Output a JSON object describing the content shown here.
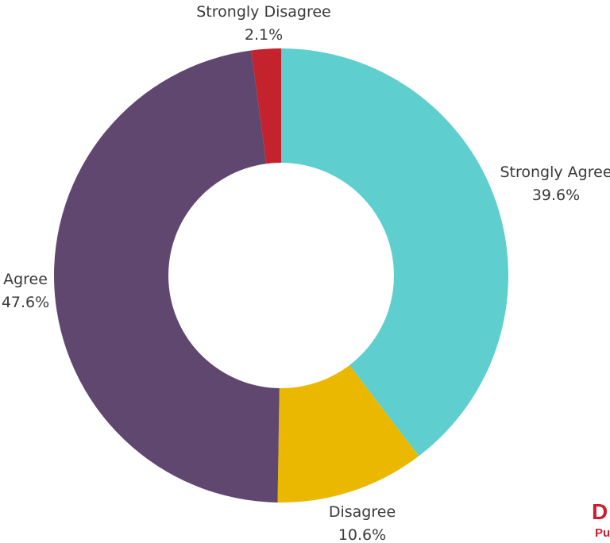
{
  "chart_data": {
    "type": "pie",
    "style": "donut",
    "slices": [
      {
        "label": "Strongly Agree",
        "value": 39.6,
        "display": "39.6%",
        "color": "#5ecece"
      },
      {
        "label": "Disagree",
        "value": 10.6,
        "display": "10.6%",
        "color": "#ebb800"
      },
      {
        "label": "Agree",
        "value": 47.6,
        "display": "47.6%",
        "color": "#60476f"
      },
      {
        "label": "Strongly Disagree",
        "value": 2.1,
        "display": "2.1%",
        "color": "#c4232d"
      }
    ]
  },
  "logo": {
    "text_large": "D",
    "text_small": "Pu",
    "color": "#c8202e"
  }
}
